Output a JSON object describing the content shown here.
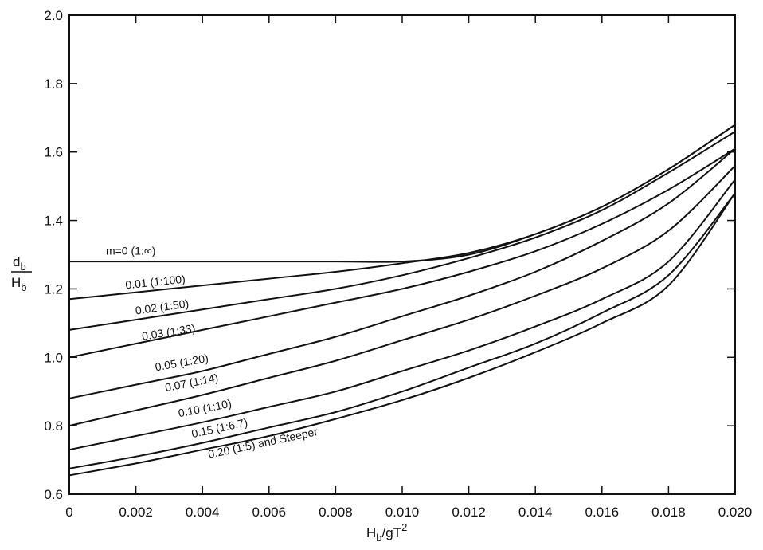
{
  "chart_data": {
    "type": "line",
    "xlabel_main": "H",
    "xlabel_sub": "b",
    "xlabel_rest": "/gT",
    "xlabel_sup": "2",
    "ylabel_num_main": "d",
    "ylabel_num_sub": "b",
    "ylabel_den_main": "H",
    "ylabel_den_sub": "b",
    "xlim": [
      0,
      0.02
    ],
    "ylim": [
      0.6,
      2.0
    ],
    "x_ticks": [
      0,
      0.002,
      0.004,
      0.006,
      0.008,
      0.01,
      0.012,
      0.014,
      0.016,
      0.018,
      0.02
    ],
    "x_tick_labels": [
      "0",
      "0.002",
      "0.004",
      "0.006",
      "0.008",
      "0.010",
      "0.012",
      "0.014",
      "0.016",
      "0.018",
      "0.020"
    ],
    "y_ticks": [
      0.6,
      0.8,
      1.0,
      1.2,
      1.4,
      1.6,
      1.8,
      2.0
    ],
    "y_tick_labels": [
      "0.6",
      "0.8",
      "1.0",
      "1.2",
      "1.4",
      "1.6",
      "1.8",
      "2.0"
    ],
    "grid": false,
    "series": [
      {
        "name": "m=0 (1:∞)",
        "x": [
          0,
          0.004,
          0.008,
          0.01,
          0.012,
          0.014,
          0.016,
          0.018,
          0.02
        ],
        "y": [
          1.28,
          1.28,
          1.28,
          1.28,
          1.3,
          1.36,
          1.44,
          1.55,
          1.68
        ]
      },
      {
        "name": "0.01 (1:100)",
        "x": [
          0,
          0.002,
          0.004,
          0.006,
          0.008,
          0.01,
          0.012,
          0.014,
          0.016,
          0.018,
          0.02
        ],
        "y": [
          1.17,
          1.19,
          1.21,
          1.23,
          1.25,
          1.275,
          1.305,
          1.36,
          1.44,
          1.55,
          1.68
        ]
      },
      {
        "name": "0.02 (1:50)",
        "x": [
          0,
          0.002,
          0.004,
          0.006,
          0.008,
          0.01,
          0.012,
          0.014,
          0.016,
          0.018,
          0.02
        ],
        "y": [
          1.08,
          1.11,
          1.14,
          1.17,
          1.2,
          1.24,
          1.29,
          1.35,
          1.43,
          1.54,
          1.66
        ]
      },
      {
        "name": "0.03 (1:33)",
        "x": [
          0,
          0.002,
          0.004,
          0.006,
          0.008,
          0.01,
          0.012,
          0.014,
          0.016,
          0.018,
          0.02
        ],
        "y": [
          1.0,
          1.04,
          1.08,
          1.12,
          1.16,
          1.2,
          1.25,
          1.31,
          1.39,
          1.49,
          1.61
        ]
      },
      {
        "name": "0.05 (1:20)",
        "x": [
          0,
          0.002,
          0.004,
          0.006,
          0.008,
          0.01,
          0.012,
          0.014,
          0.016,
          0.018,
          0.02
        ],
        "y": [
          0.88,
          0.92,
          0.96,
          1.01,
          1.06,
          1.12,
          1.18,
          1.25,
          1.34,
          1.45,
          1.61
        ]
      },
      {
        "name": "0.07 (1:14)",
        "x": [
          0,
          0.002,
          0.004,
          0.006,
          0.008,
          0.01,
          0.012,
          0.014,
          0.016,
          0.018,
          0.02
        ],
        "y": [
          0.8,
          0.845,
          0.89,
          0.94,
          0.99,
          1.05,
          1.11,
          1.18,
          1.26,
          1.37,
          1.56
        ]
      },
      {
        "name": "0.10 (1:10)",
        "x": [
          0,
          0.002,
          0.004,
          0.006,
          0.008,
          0.01,
          0.012,
          0.014,
          0.016,
          0.018,
          0.02
        ],
        "y": [
          0.73,
          0.77,
          0.81,
          0.855,
          0.9,
          0.96,
          1.02,
          1.09,
          1.17,
          1.28,
          1.52
        ]
      },
      {
        "name": "0.15 (1:6.7)",
        "x": [
          0,
          0.002,
          0.004,
          0.006,
          0.008,
          0.01,
          0.012,
          0.014,
          0.016,
          0.018,
          0.02
        ],
        "y": [
          0.675,
          0.71,
          0.75,
          0.795,
          0.84,
          0.9,
          0.97,
          1.04,
          1.13,
          1.24,
          1.48
        ]
      },
      {
        "name": "0.20 (1:5) and Steeper",
        "x": [
          0,
          0.002,
          0.004,
          0.006,
          0.008,
          0.01,
          0.012,
          0.014,
          0.016,
          0.018,
          0.02
        ],
        "y": [
          0.655,
          0.69,
          0.73,
          0.77,
          0.82,
          0.875,
          0.94,
          1.015,
          1.1,
          1.21,
          1.48
        ]
      }
    ],
    "curve_labels": [
      {
        "text": "m=0 (1:∞)",
        "at_x": 0.0011,
        "at_y": 1.3,
        "angle": 0
      },
      {
        "text": "0.01 (1:100)",
        "at_x": 0.0017,
        "at_y": 1.2,
        "angle": -6
      },
      {
        "text": "0.02 (1:50)",
        "at_x": 0.002,
        "at_y": 1.125,
        "angle": -8
      },
      {
        "text": "0.03 (1:33)",
        "at_x": 0.0022,
        "at_y": 1.05,
        "angle": -9
      },
      {
        "text": "0.05 (1:20)",
        "at_x": 0.0026,
        "at_y": 0.96,
        "angle": -10
      },
      {
        "text": "0.07 (1:14)",
        "at_x": 0.0029,
        "at_y": 0.9,
        "angle": -11
      },
      {
        "text": "0.10 (1:10)",
        "at_x": 0.0033,
        "at_y": 0.825,
        "angle": -11
      },
      {
        "text": "0.15 (1:6.7)",
        "at_x": 0.0037,
        "at_y": 0.765,
        "angle": -12
      },
      {
        "text": "0.20 (1:5) and Steeper",
        "at_x": 0.0042,
        "at_y": 0.705,
        "angle": -12
      }
    ]
  }
}
